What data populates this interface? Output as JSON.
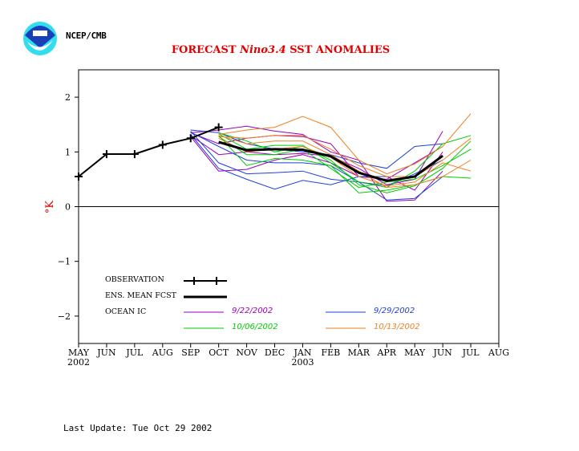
{
  "header": {
    "agency": "NCEP/CMB",
    "logo": "noaa-logo-icon"
  },
  "footer": {
    "last_update": "Last Update: Tue Oct 29 2002"
  },
  "chart_data": {
    "type": "line",
    "title_parts": [
      "FORECAST ",
      "Nino3.4",
      " SST ANOMALIES"
    ],
    "title": "FORECAST Nino3.4 SST ANOMALIES",
    "xlabel": "",
    "ylabel": "°K",
    "ylim": [
      -2.5,
      2.5
    ],
    "yticks": [
      -2,
      -1,
      0,
      1,
      2
    ],
    "ytick_labels": [
      "−2",
      "−1",
      "0",
      "1",
      "2"
    ],
    "x_categories": [
      "MAY",
      "JUN",
      "JUL",
      "AUG",
      "SEP",
      "OCT",
      "NOV",
      "DEC",
      "JAN",
      "FEB",
      "MAR",
      "APR",
      "MAY",
      "JUN",
      "JUL",
      "AUG"
    ],
    "x_year_labels": [
      {
        "index": 0,
        "label": "2002"
      },
      {
        "index": 8,
        "label": "2003"
      }
    ],
    "zero_line": true,
    "grid": false,
    "legend": {
      "placement": "bottom-left",
      "observation": "OBSERVATION",
      "ens_mean": "ENS. MEAN FCST",
      "ocean_ic": "OCEAN IC",
      "ic_dates": [
        {
          "label": "9/22/2002",
          "color": "#9900bb"
        },
        {
          "label": "9/29/2002",
          "color": "#1f3fdd"
        },
        {
          "label": "10/06/2002",
          "color": "#00cc00"
        },
        {
          "label": "10/13/2002",
          "color": "#ee7f1f"
        }
      ]
    },
    "observation": {
      "name": "OBSERVATION",
      "color": "#000000",
      "start_index": 0,
      "values": [
        0.55,
        0.96,
        0.96,
        1.13,
        1.25,
        1.45
      ]
    },
    "ensemble_mean": {
      "name": "ENS. MEAN FCST",
      "color": "#000000",
      "start_index": 5,
      "values": [
        1.18,
        1.03,
        1.05,
        1.04,
        0.92,
        0.62,
        0.47,
        0.55,
        0.93
      ]
    },
    "members": [
      {
        "group": "9/22/2002",
        "color": "#9900bb",
        "start_index": 4,
        "values": [
          1.35,
          1.4,
          1.47,
          1.38,
          1.32,
          1.0,
          0.85,
          0.1,
          0.12,
          0.65
        ]
      },
      {
        "group": "9/22/2002",
        "color": "#9900bb",
        "start_index": 4,
        "values": [
          1.3,
          0.95,
          1.0,
          0.95,
          0.97,
          0.92,
          0.7,
          0.4,
          0.5,
          1.38
        ]
      },
      {
        "group": "9/22/2002",
        "color": "#9900bb",
        "start_index": 4,
        "values": [
          1.28,
          0.65,
          0.68,
          0.85,
          0.95,
          0.8,
          0.55,
          0.5,
          0.8,
          1.1
        ]
      },
      {
        "group": "9/22/2002",
        "color": "#9900bb",
        "start_index": 4,
        "values": [
          1.35,
          1.15,
          1.25,
          1.3,
          1.28,
          1.15,
          0.55,
          0.55,
          0.3,
          1.0
        ]
      },
      {
        "group": "9/29/2002",
        "color": "#1f3fdd",
        "start_index": 4,
        "values": [
          1.4,
          1.35,
          1.15,
          1.05,
          1.0,
          0.95,
          0.8,
          0.7,
          1.1,
          1.15
        ]
      },
      {
        "group": "9/29/2002",
        "color": "#1f3fdd",
        "start_index": 4,
        "values": [
          1.38,
          0.8,
          0.6,
          0.62,
          0.65,
          0.5,
          0.45,
          0.12,
          0.15,
          0.55
        ]
      },
      {
        "group": "9/29/2002",
        "color": "#1f3fdd",
        "start_index": 4,
        "values": [
          1.32,
          0.7,
          0.5,
          0.32,
          0.48,
          0.4,
          0.55,
          0.55,
          0.55,
          0.92
        ]
      },
      {
        "group": "9/29/2002",
        "color": "#1f3fdd",
        "start_index": 4,
        "values": [
          1.36,
          1.1,
          0.85,
          0.8,
          0.8,
          0.75,
          0.45,
          0.38,
          0.6,
          0.85
        ]
      },
      {
        "group": "10/06/2002",
        "color": "#00cc00",
        "start_index": 5,
        "values": [
          1.35,
          1.2,
          1.0,
          1.1,
          0.85,
          0.4,
          0.25,
          0.38,
          0.7,
          1.2
        ]
      },
      {
        "group": "10/06/2002",
        "color": "#00cc00",
        "start_index": 5,
        "values": [
          1.3,
          0.75,
          0.88,
          0.85,
          0.75,
          0.25,
          0.3,
          0.4,
          0.55,
          0.52
        ]
      },
      {
        "group": "10/06/2002",
        "color": "#00cc00",
        "start_index": 5,
        "values": [
          1.33,
          1.05,
          1.12,
          1.12,
          0.8,
          0.45,
          0.35,
          0.65,
          1.15,
          1.3
        ]
      },
      {
        "group": "10/06/2002",
        "color": "#00cc00",
        "start_index": 5,
        "values": [
          1.28,
          0.95,
          0.95,
          1.05,
          0.7,
          0.35,
          0.45,
          0.5,
          0.75,
          1.05
        ]
      },
      {
        "group": "10/13/2002",
        "color": "#ee7f1f",
        "start_index": 5,
        "values": [
          1.32,
          1.4,
          1.45,
          1.65,
          1.45,
          0.85,
          0.6,
          0.78,
          1.1,
          1.7
        ]
      },
      {
        "group": "10/13/2002",
        "color": "#ee7f1f",
        "start_index": 5,
        "values": [
          1.28,
          1.25,
          1.3,
          1.3,
          1.05,
          0.75,
          0.55,
          0.55,
          0.85,
          1.25
        ]
      },
      {
        "group": "10/13/2002",
        "color": "#ee7f1f",
        "start_index": 5,
        "values": [
          1.25,
          1.0,
          1.05,
          1.1,
          0.9,
          0.55,
          0.38,
          0.45,
          0.8,
          0.65
        ]
      },
      {
        "group": "10/13/2002",
        "color": "#ee7f1f",
        "start_index": 5,
        "values": [
          1.3,
          1.15,
          1.2,
          1.2,
          0.95,
          0.65,
          0.35,
          0.4,
          0.55,
          0.85
        ]
      }
    ]
  }
}
